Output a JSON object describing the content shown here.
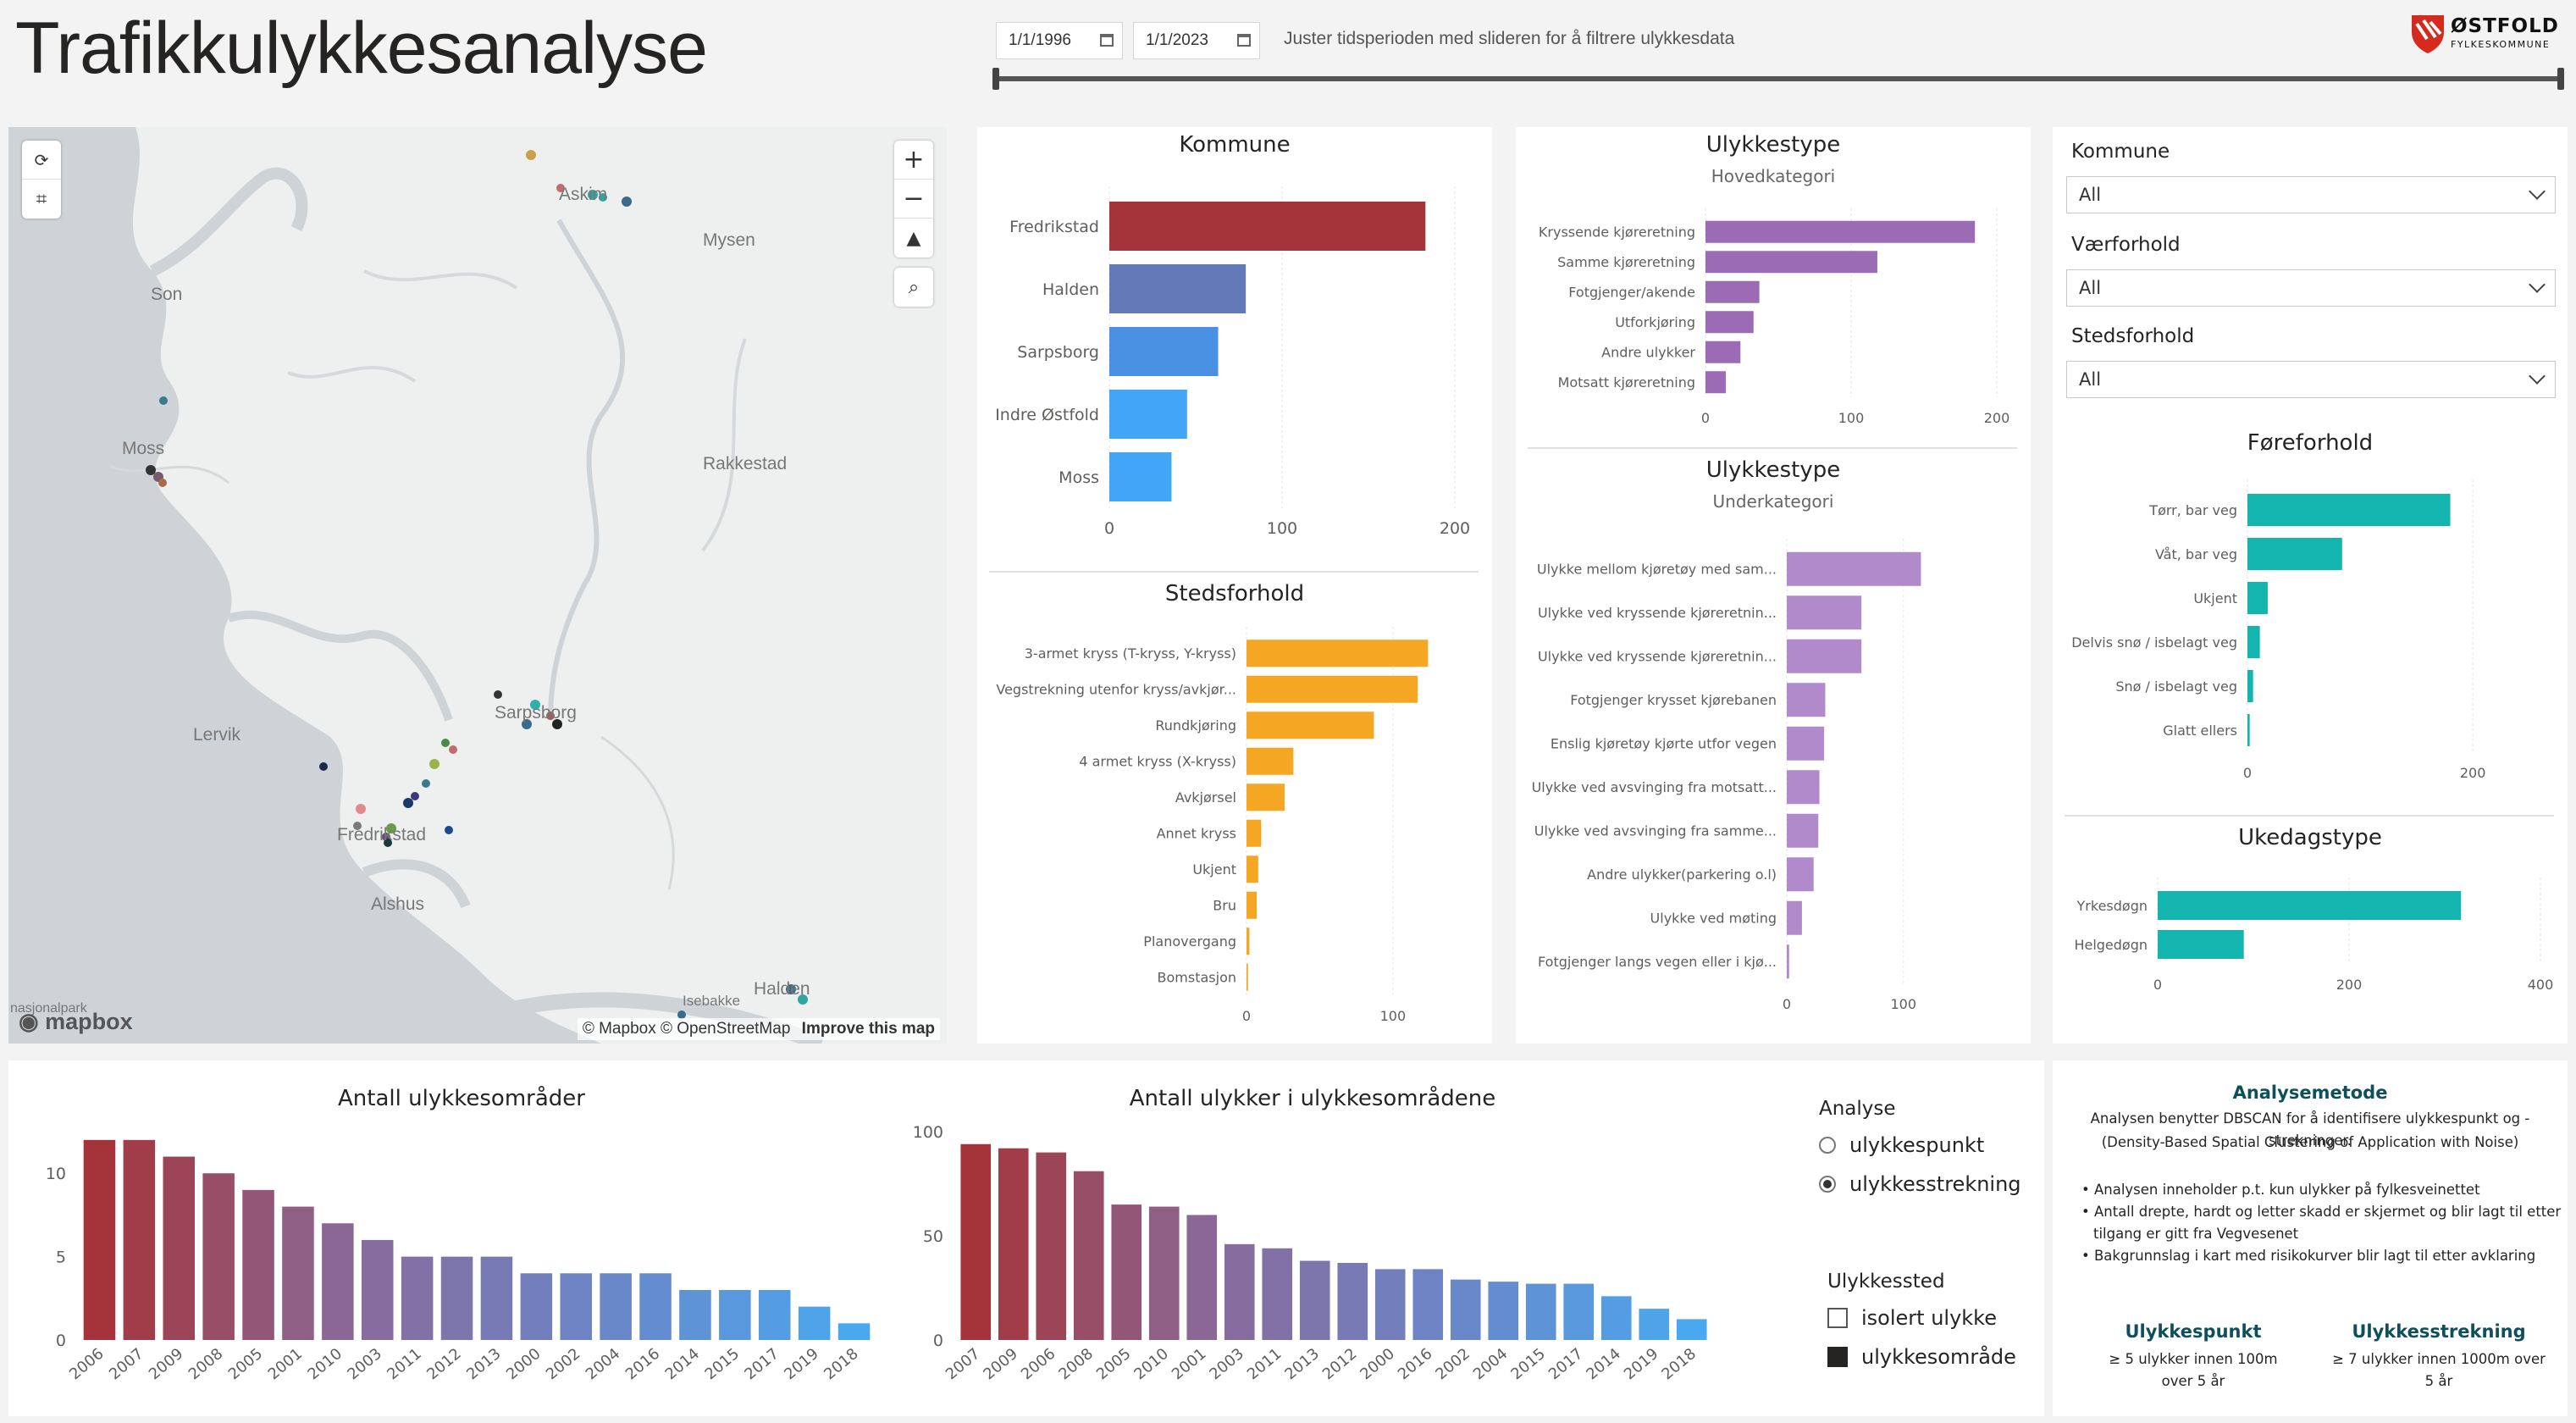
{
  "page": {
    "title": "Trafikkulykkesanalyse",
    "date_from": "1/1/1996",
    "date_to": "1/1/2023",
    "slider_hint": "Juster tidsperioden med slideren for å filtrere ulykkesdata",
    "logo_line1": "ØSTFOLD",
    "logo_line2": "FYLKESKOMMUNE"
  },
  "map": {
    "labels": [
      "Askim",
      "Mysen",
      "Son",
      "Moss",
      "Rakkestad",
      "Sarpsborg",
      "Lervik",
      "Fredrikstad",
      "Alshus",
      "Isebakke",
      "Halden"
    ],
    "park_label": "nasjonalpark",
    "attribution": "© Mapbox © OpenStreetMap",
    "improve_link": "Improve this map",
    "logo_text": "mapbox",
    "zoom_in": "+",
    "zoom_out": "−"
  },
  "colors": {
    "kommune": [
      "#a4343a",
      "#6379b8",
      "#4a90e2",
      "#42a5f5",
      "#42a5f5"
    ],
    "ulykkestype": "#9b6cb5",
    "underkategori": "#b08acb",
    "stedsforhold": "#f5a623",
    "foreforhold": "#13b5ae",
    "ukedag": "#13b5ae"
  },
  "chart_data": [
    {
      "id": "kommune",
      "type": "bar",
      "orientation": "horizontal",
      "title": "Kommune",
      "categories": [
        "Fredrikstad",
        "Halden",
        "Sarpsborg",
        "Indre Østfold",
        "Moss"
      ],
      "values": [
        183,
        79,
        63,
        45,
        36
      ],
      "xlim": [
        0,
        200
      ],
      "xticks": [
        0,
        100,
        200
      ]
    },
    {
      "id": "stedsforhold",
      "type": "bar",
      "orientation": "horizontal",
      "title": "Stedsforhold",
      "categories": [
        "3-armet kryss (T-kryss, Y-kryss)",
        "Vegstrekning utenfor kryss/avkjør...",
        "Rundkjøring",
        "4 armet kryss (X-kryss)",
        "Avkjørsel",
        "Annet kryss",
        "Ukjent",
        "Bru",
        "Planovergang",
        "Bomstasjon"
      ],
      "values": [
        124,
        117,
        87,
        32,
        26,
        10,
        8,
        7,
        2,
        1
      ],
      "xlim": [
        0,
        140
      ],
      "xticks": [
        0,
        100
      ]
    },
    {
      "id": "ulykkestype-hoved",
      "type": "bar",
      "orientation": "horizontal",
      "title": "Ulykkestype",
      "subtitle": "Hovedkategori",
      "categories": [
        "Kryssende kjøreretning",
        "Samme kjøreretning",
        "Fotgjenger/akende",
        "Utforkjøring",
        "Andre ulykker",
        "Motsatt kjøreretning"
      ],
      "values": [
        185,
        118,
        37,
        33,
        24,
        14
      ],
      "xlim": [
        0,
        200
      ],
      "xticks": [
        0,
        100,
        200
      ]
    },
    {
      "id": "ulykkestype-under",
      "type": "bar",
      "orientation": "horizontal",
      "title": "Ulykkestype",
      "subtitle": "Underkategori",
      "categories": [
        "Ulykke mellom kjøretøy med sam...",
        "Ulykke ved kryssende kjøreretnin...",
        "Ulykke ved kryssende kjøreretnin...",
        "Fotgjenger krysset kjørebanen",
        "Enslig kjøretøy kjørte utfor vegen",
        "Ulykke ved avsvinging fra motsatt...",
        "Ulykke ved avsvinging fra samme...",
        "Andre ulykker(parkering o.l)",
        "Ulykke ved møting",
        "Fotgjenger langs vegen eller i kjø..."
      ],
      "values": [
        115,
        64,
        64,
        33,
        32,
        28,
        27,
        23,
        13,
        2
      ],
      "xlim": [
        0,
        180
      ],
      "xticks": [
        0,
        100
      ]
    },
    {
      "id": "foreforhold",
      "type": "bar",
      "orientation": "horizontal",
      "title": "Føreforhold",
      "categories": [
        "Tørr, bar veg",
        "Våt, bar veg",
        "Ukjent",
        "Delvis snø / isbelagt veg",
        "Snø / isbelagt veg",
        "Glatt ellers"
      ],
      "values": [
        180,
        84,
        18,
        11,
        5,
        2
      ],
      "xlim": [
        0,
        260
      ],
      "xticks": [
        0,
        200
      ]
    },
    {
      "id": "ukedag",
      "type": "bar",
      "orientation": "horizontal",
      "title": "Ukedagstype",
      "categories": [
        "Yrkesdøgn",
        "Helgedøgn"
      ],
      "values": [
        317,
        90
      ],
      "xlim": [
        0,
        400
      ],
      "xticks": [
        0,
        200,
        400
      ]
    },
    {
      "id": "antall-omrader",
      "type": "bar",
      "orientation": "vertical",
      "title": "Antall ulykkesområder",
      "categories": [
        "2006",
        "2007",
        "2009",
        "2008",
        "2005",
        "2001",
        "2010",
        "2003",
        "2011",
        "2012",
        "2013",
        "2000",
        "2002",
        "2004",
        "2016",
        "2014",
        "2015",
        "2017",
        "2019",
        "2018"
      ],
      "values": [
        12,
        12,
        11,
        10,
        9,
        8,
        7,
        6,
        5,
        5,
        5,
        4,
        4,
        4,
        4,
        3,
        3,
        3,
        2,
        1
      ],
      "ylim": [
        0,
        12.5
      ],
      "yticks": [
        0,
        5,
        10
      ]
    },
    {
      "id": "antall-ulykker",
      "type": "bar",
      "orientation": "vertical",
      "title": "Antall ulykker i ulykkesområdene",
      "categories": [
        "2007",
        "2009",
        "2006",
        "2008",
        "2005",
        "2010",
        "2001",
        "2003",
        "2011",
        "2013",
        "2012",
        "2000",
        "2016",
        "2002",
        "2004",
        "2015",
        "2017",
        "2014",
        "2019",
        "2018"
      ],
      "values": [
        94,
        92,
        90,
        81,
        65,
        64,
        60,
        46,
        44,
        38,
        37,
        34,
        34,
        29,
        28,
        27,
        27,
        21,
        15,
        10
      ],
      "ylim": [
        0,
        100
      ],
      "yticks": [
        0,
        50,
        100
      ]
    }
  ],
  "slicers": {
    "kommune_label": "Kommune",
    "kommune_value": "All",
    "vaer_label": "Værforhold",
    "vaer_value": "All",
    "steds_label": "Stedsforhold",
    "steds_value": "All"
  },
  "analyse": {
    "label": "Analyse",
    "opt1": "ulykkespunkt",
    "opt2": "ulykkesstrekning",
    "selected": "ulykkesstrekning"
  },
  "ulykkessted": {
    "label": "Ulykkessted",
    "opt1": "isolert ulykke",
    "opt2": "ulykkesområde"
  },
  "analysemetode": {
    "title": "Analysemetode",
    "line1": "Analysen benytter DBSCAN for å identifisere ulykkespunkt og -strekninger.",
    "line2": "(Density-Based Spatial Clustering of Application with Noise)",
    "bullet1": "• Analysen inneholder p.t. kun ulykker på fylkesveinettet",
    "bullet2a": "• Antall drepte, hardt og letter skadd er skjermet og blir lagt til etter",
    "bullet2b": "tilgang er gitt fra Vegvesenet",
    "bullet3": "• Bakgrunnslag i kart med risikokurver blir lagt til etter avklaring",
    "punkt_title": "Ulykkespunkt",
    "punkt_text": "≥ 5 ulykker innen 100m over 5 år",
    "strekning_title": "Ulykkesstrekning",
    "strekning_text": "≥ 7 ulykker innen 1000m over 5 år"
  }
}
